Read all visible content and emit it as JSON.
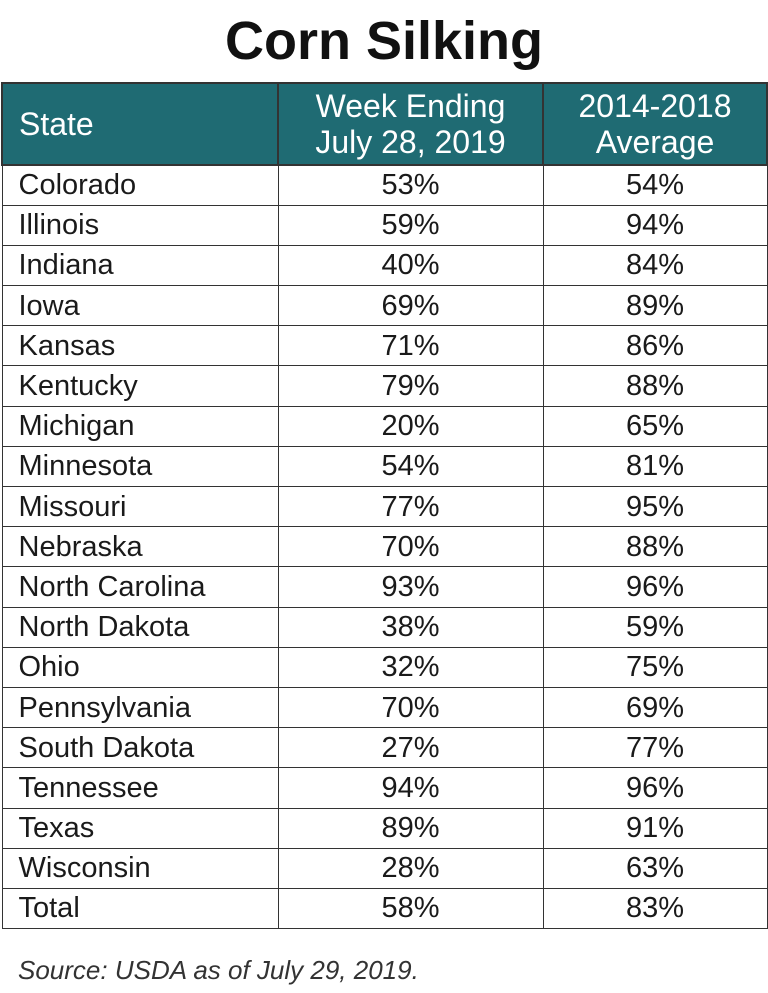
{
  "title": "Corn Silking",
  "header": {
    "state": "State",
    "week_line1": "Week Ending",
    "week_line2": "July 28, 2019",
    "avg_line1": "2014-2018",
    "avg_line2": "Average"
  },
  "rows": [
    {
      "state": "Colorado",
      "week": "53%",
      "avg": "54%"
    },
    {
      "state": "Illinois",
      "week": "59%",
      "avg": "94%"
    },
    {
      "state": "Indiana",
      "week": "40%",
      "avg": "84%"
    },
    {
      "state": "Iowa",
      "week": "69%",
      "avg": "89%"
    },
    {
      "state": "Kansas",
      "week": "71%",
      "avg": "86%"
    },
    {
      "state": "Kentucky",
      "week": "79%",
      "avg": "88%"
    },
    {
      "state": "Michigan",
      "week": "20%",
      "avg": "65%"
    },
    {
      "state": "Minnesota",
      "week": "54%",
      "avg": "81%"
    },
    {
      "state": "Missouri",
      "week": "77%",
      "avg": "95%"
    },
    {
      "state": "Nebraska",
      "week": "70%",
      "avg": "88%"
    },
    {
      "state": "North Carolina",
      "week": "93%",
      "avg": "96%"
    },
    {
      "state": "North Dakota",
      "week": "38%",
      "avg": "59%"
    },
    {
      "state": "Ohio",
      "week": "32%",
      "avg": "75%"
    },
    {
      "state": "Pennsylvania",
      "week": "70%",
      "avg": "69%"
    },
    {
      "state": "South Dakota",
      "week": "27%",
      "avg": "77%"
    },
    {
      "state": "Tennessee",
      "week": "94%",
      "avg": "96%"
    },
    {
      "state": "Texas",
      "week": "89%",
      "avg": "91%"
    },
    {
      "state": "Wisconsin",
      "week": "28%",
      "avg": "63%"
    },
    {
      "state": "Total",
      "week": "58%",
      "avg": "83%"
    }
  ],
  "source": "Source: USDA as of July 29, 2019.",
  "colors": {
    "header_bg": "#1f6b73",
    "header_text": "#ffffff",
    "border": "#333333"
  }
}
